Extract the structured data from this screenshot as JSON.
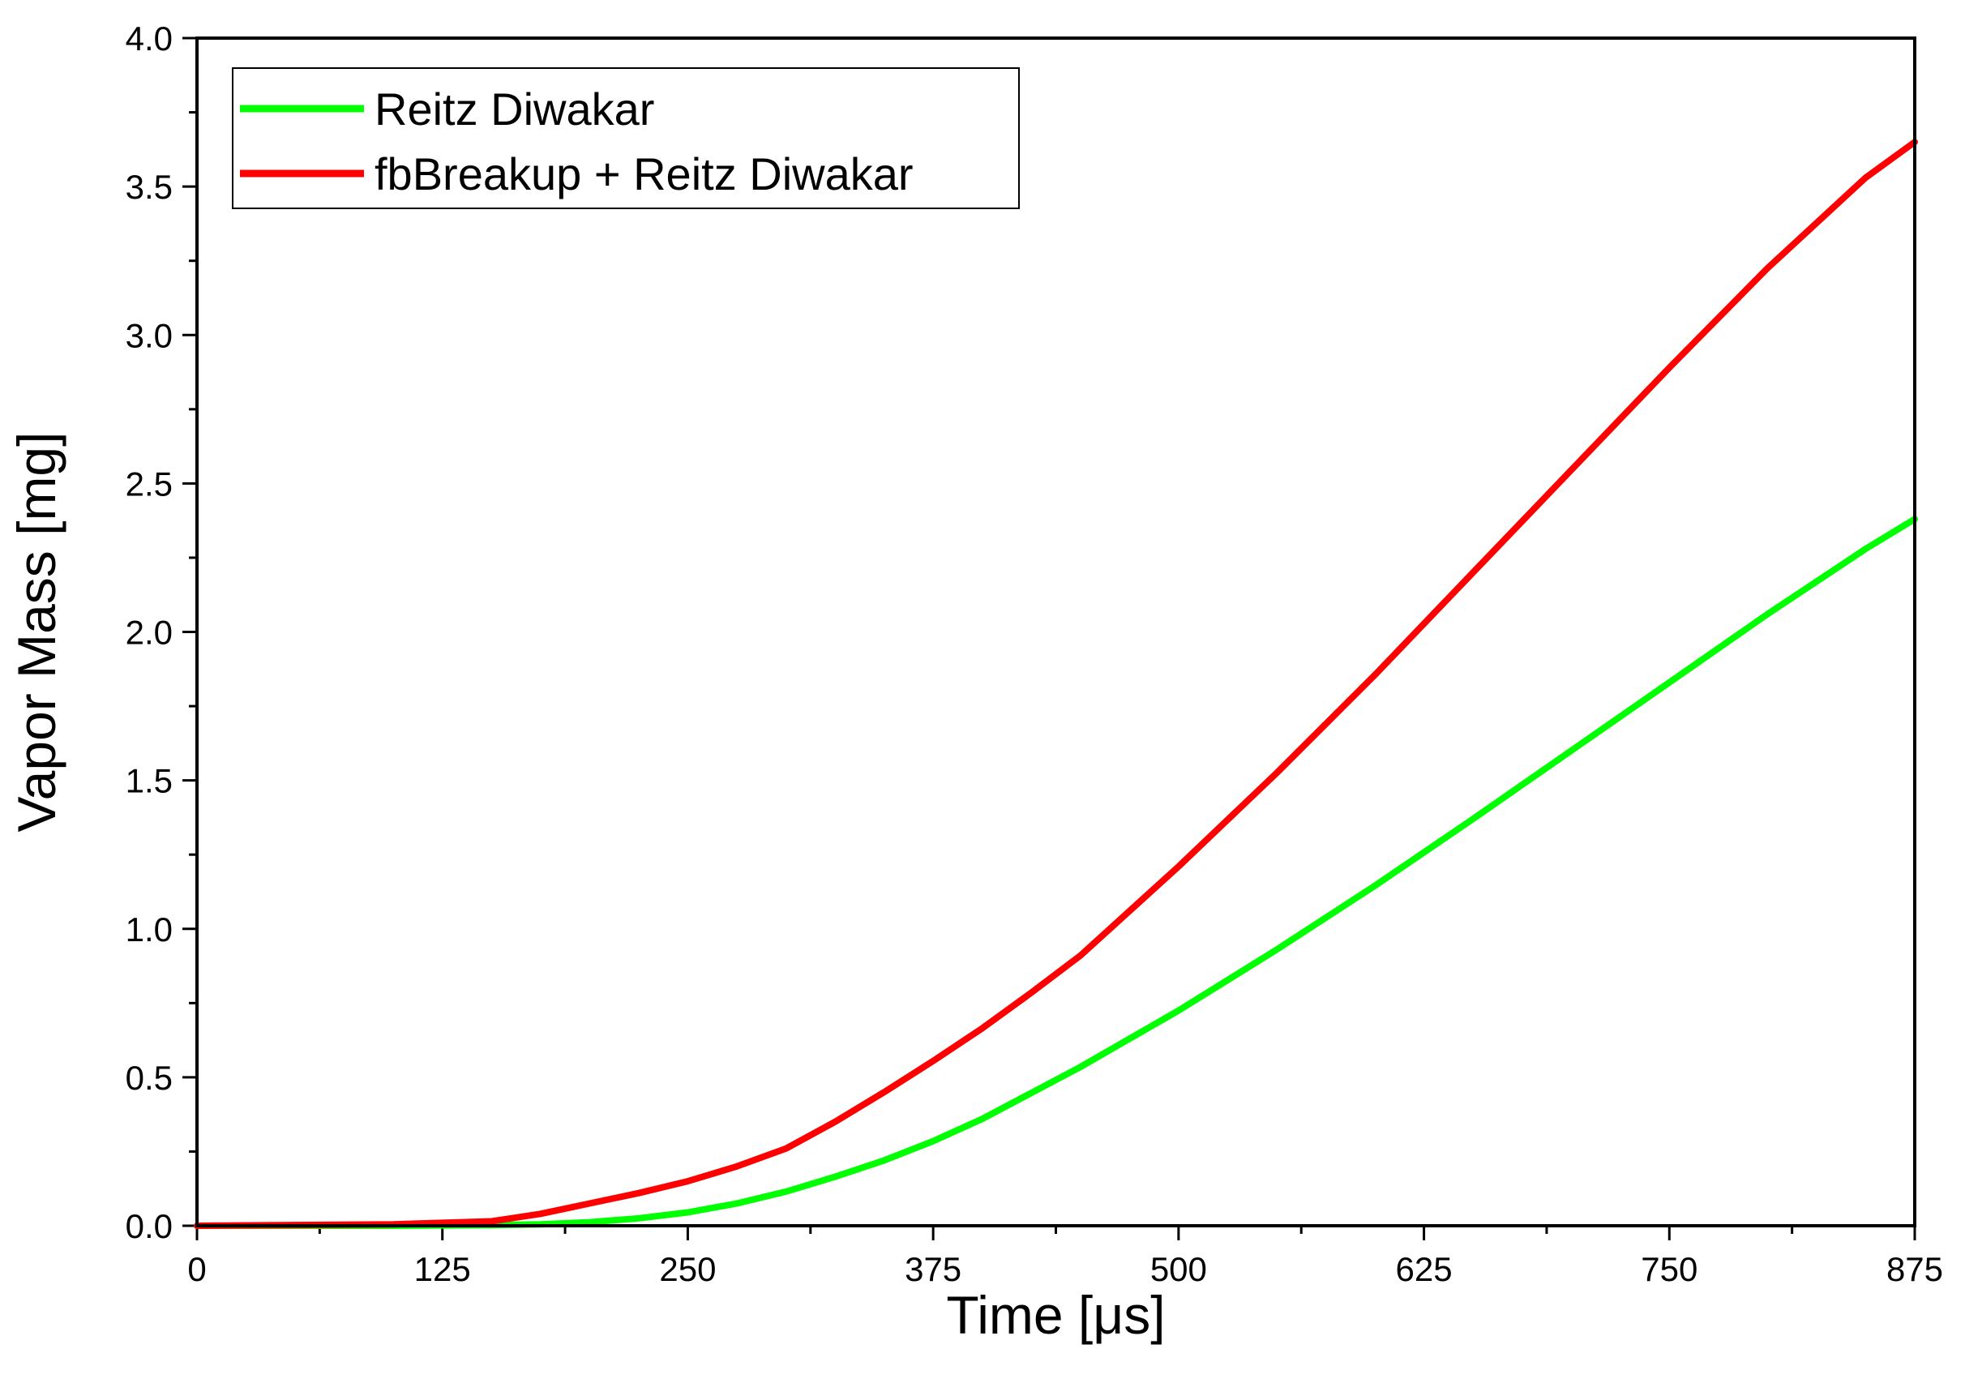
{
  "chart_data": {
    "type": "line",
    "xlabel": "Time [μs]",
    "ylabel": "Vapor Mass [mg]",
    "xlim": [
      0,
      875
    ],
    "ylim": [
      0,
      4.0
    ],
    "x_ticks": [
      0,
      125,
      250,
      375,
      500,
      625,
      750,
      875
    ],
    "x_tick_labels": [
      "0",
      "125",
      "250",
      "375",
      "500",
      "625",
      "750",
      "875"
    ],
    "y_ticks": [
      0,
      0.5,
      1.0,
      1.5,
      2.0,
      2.5,
      3.0,
      3.5,
      4.0
    ],
    "y_tick_labels": [
      "0.0",
      "0.5",
      "1.0",
      "1.5",
      "2.0",
      "2.5",
      "3.0",
      "3.5",
      "4.0"
    ],
    "grid": false,
    "legend_position": "top-left",
    "series": [
      {
        "name": "Reitz Diwakar",
        "color": "#00ff00",
        "x": [
          0,
          100,
          150,
          175,
          200,
          225,
          250,
          275,
          300,
          325,
          350,
          375,
          400,
          450,
          500,
          550,
          600,
          650,
          700,
          750,
          800,
          850,
          875
        ],
        "y": [
          0,
          0,
          0.002,
          0.005,
          0.012,
          0.025,
          0.045,
          0.075,
          0.115,
          0.165,
          0.22,
          0.285,
          0.36,
          0.535,
          0.725,
          0.93,
          1.145,
          1.37,
          1.6,
          1.83,
          2.06,
          2.28,
          2.38
        ]
      },
      {
        "name": "fbBreakup + Reitz Diwakar",
        "color": "#ff0000",
        "x": [
          0,
          100,
          150,
          175,
          200,
          225,
          250,
          275,
          300,
          325,
          350,
          375,
          400,
          425,
          450,
          500,
          550,
          600,
          650,
          700,
          750,
          800,
          850,
          875
        ],
        "y": [
          0,
          0.005,
          0.015,
          0.04,
          0.075,
          0.11,
          0.15,
          0.2,
          0.26,
          0.35,
          0.45,
          0.555,
          0.665,
          0.785,
          0.91,
          1.21,
          1.525,
          1.855,
          2.2,
          2.545,
          2.89,
          3.225,
          3.53,
          3.65
        ]
      }
    ]
  }
}
